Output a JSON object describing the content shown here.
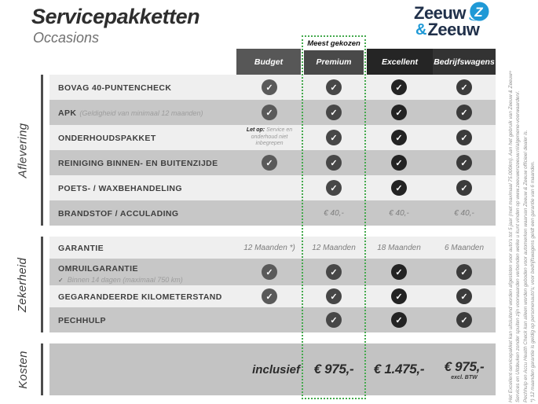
{
  "page": {
    "title": "Servicepakketten",
    "subtitle": "Occasions"
  },
  "logo": {
    "top": "Zeeuw",
    "amp": "&",
    "bottom": "Zeeuw",
    "navy": "#20304a",
    "blue": "#1f99d6"
  },
  "table": {
    "badge": "Meest gekozen",
    "accent_green": "#44a94d",
    "columns": [
      {
        "id": "budget",
        "label": "Budget",
        "header_bg": "#575757",
        "check_color": "#5a5a5a"
      },
      {
        "id": "premium",
        "label": "Premium",
        "header_bg": "#494949",
        "check_color": "#474747"
      },
      {
        "id": "excellent",
        "label": "Excellent",
        "header_bg": "#252525",
        "check_color": "#232323"
      },
      {
        "id": "bedrijfswagens",
        "label": "Bedrijfswagens",
        "header_bg": "#333333",
        "check_color": "#3b3b3b"
      }
    ],
    "sections": [
      {
        "label": "Aflevering",
        "rows": [
          {
            "label": "BOVAG 40-PUNTENCHECK",
            "shade": "light",
            "cells": [
              {
                "t": "check"
              },
              {
                "t": "check"
              },
              {
                "t": "check"
              },
              {
                "t": "check"
              }
            ]
          },
          {
            "label": "APK",
            "sub_inline": "(Geldigheid van minimaal 12 maanden)",
            "shade": "dark",
            "cells": [
              {
                "t": "check"
              },
              {
                "t": "check"
              },
              {
                "t": "check"
              },
              {
                "t": "check"
              }
            ]
          },
          {
            "label": "ONDERHOUDSPAKKET",
            "shade": "light",
            "cells": [
              {
                "t": "note",
                "prefix": "Let op:",
                "v": "Service en onderhoud niet inbegrepen"
              },
              {
                "t": "check"
              },
              {
                "t": "check"
              },
              {
                "t": "check"
              }
            ]
          },
          {
            "label": "REINIGING BINNEN- EN BUITENZIJDE",
            "shade": "dark",
            "cells": [
              {
                "t": "check"
              },
              {
                "t": "check"
              },
              {
                "t": "check"
              },
              {
                "t": "check"
              }
            ]
          },
          {
            "label": "POETS- / WAXBEHANDELING",
            "shade": "light",
            "cells": [
              {
                "t": "empty"
              },
              {
                "t": "check"
              },
              {
                "t": "check"
              },
              {
                "t": "check"
              }
            ]
          },
          {
            "label": "BRANDSTOF / ACCULADING",
            "shade": "dark",
            "cells": [
              {
                "t": "empty"
              },
              {
                "t": "text",
                "v": "€ 40,-"
              },
              {
                "t": "text",
                "v": "€ 40,-"
              },
              {
                "t": "text",
                "v": "€ 40,-"
              }
            ]
          }
        ]
      },
      {
        "label": "Zekerheid",
        "rows": [
          {
            "label": "GARANTIE",
            "shade": "light",
            "cells": [
              {
                "t": "text",
                "v": "12 Maanden *)"
              },
              {
                "t": "text",
                "v": "12 Maanden"
              },
              {
                "t": "text",
                "v": "18 Maanden"
              },
              {
                "t": "text",
                "v": "6 Maanden"
              }
            ]
          },
          {
            "label": "OMRUILGARANTIE",
            "sub_line": "Binnen 14 dagen (maximaal 750 km)",
            "sub_line_check": true,
            "shade": "dark",
            "cells": [
              {
                "t": "check"
              },
              {
                "t": "check"
              },
              {
                "t": "check"
              },
              {
                "t": "check"
              }
            ]
          },
          {
            "label": "GEGARANDEERDE KILOMETERSTAND",
            "shade": "light",
            "cells": [
              {
                "t": "check"
              },
              {
                "t": "check"
              },
              {
                "t": "check"
              },
              {
                "t": "check"
              }
            ]
          },
          {
            "label": "PECHHULP",
            "shade": "dark",
            "cells": [
              {
                "t": "empty"
              },
              {
                "t": "check"
              },
              {
                "t": "check"
              },
              {
                "t": "check"
              }
            ]
          }
        ]
      },
      {
        "label": "Kosten",
        "rows": [
          {
            "label": "",
            "shade": "cost",
            "cells": [
              {
                "t": "incl",
                "v": "inclusief"
              },
              {
                "t": "price",
                "v": "€ 975,-"
              },
              {
                "t": "price",
                "v": "€ 1.475,-"
              },
              {
                "t": "price",
                "v": "€ 975,-",
                "sub": "excl. BTW"
              }
            ]
          }
        ]
      }
    ]
  },
  "footnotes": [
    "Het Excellent-servicepakket kan uitsluitend worden afgesloten voor auto's tot 5 jaar (met maximaal 75.000km). Aan het gebruik van Zeeuw & Zeeuw+",
    "Services en Uitdeuken zonder spuiten zijn voorwaarden verbonden welke u kunt vinden op www.zeeuwenzeeuw.nl/algemene-voorwaarden/.",
    "Pechhulp en Accu Health Check kan alleen worden geboden voor automerken waarvan Zeeuw & Zeeuw officieel dealer is.",
    "*) 12 maanden garantie is geldig op personenauto's; voor bedrijfswagens geldt een garantie van 6 maanden."
  ]
}
